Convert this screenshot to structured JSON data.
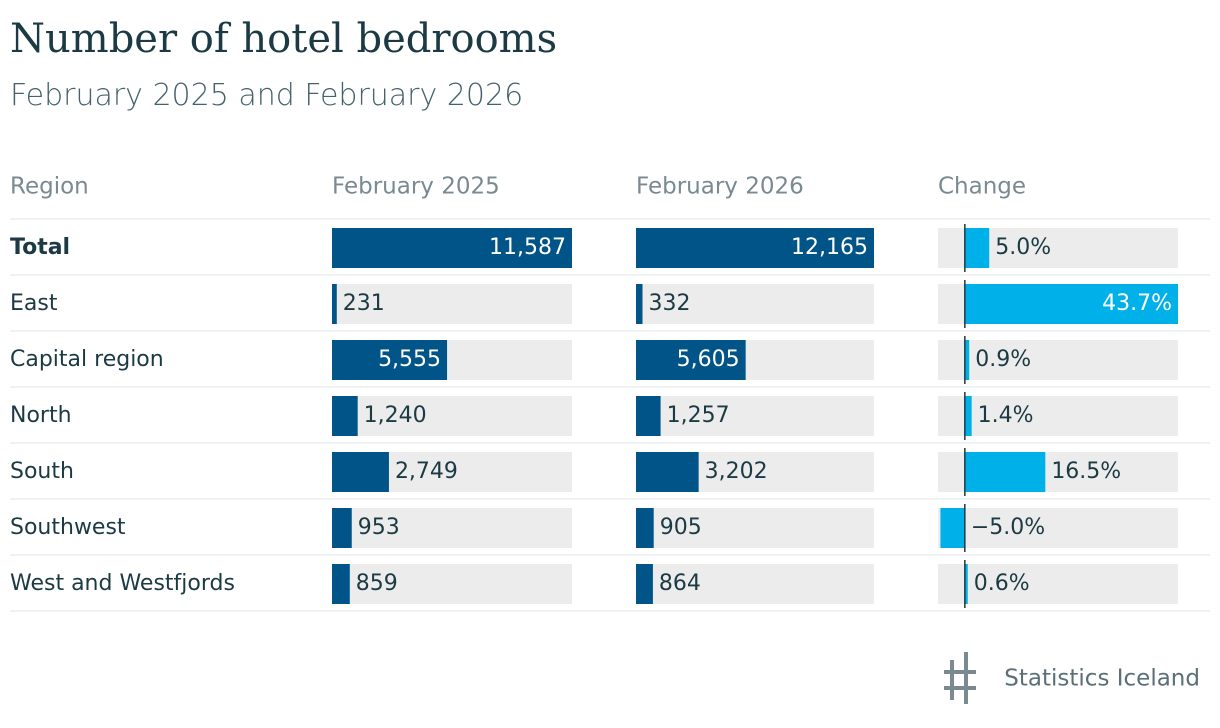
{
  "chart_data": {
    "type": "bar-table",
    "title": "Number of hotel bedrooms",
    "subtitle": "February 2025 and February 2026",
    "region_header": "Region",
    "categories": [
      "Total",
      "East",
      "Capital region",
      "North",
      "South",
      "Southwest",
      "West and Westfjords"
    ],
    "series": [
      {
        "name": "February 2025",
        "color": "#005487",
        "xlim": [
          0,
          11587
        ],
        "values": [
          11587,
          231,
          5555,
          1240,
          2749,
          953,
          859
        ],
        "value_labels": [
          "11,587",
          "231",
          "5,555",
          "1,240",
          "2,749",
          "953",
          "859"
        ]
      },
      {
        "name": "February 2026",
        "color": "#005487",
        "xlim": [
          0,
          12165
        ],
        "values": [
          12165,
          332,
          5605,
          1257,
          3202,
          905,
          864
        ],
        "value_labels": [
          "12,165",
          "332",
          "5,605",
          "1,257",
          "3,202",
          "905",
          "864"
        ]
      },
      {
        "name": "Change",
        "color": "#00b1e9",
        "xlim": [
          -5.5,
          43.7
        ],
        "values": [
          5.0,
          43.7,
          0.9,
          1.4,
          16.5,
          -5.0,
          0.6
        ],
        "value_labels": [
          "5.0%",
          "43.7%",
          "0.9%",
          "1.4%",
          "16.5%",
          "−5.0%",
          "0.6%"
        ]
      }
    ],
    "source": "Statistics Iceland"
  }
}
